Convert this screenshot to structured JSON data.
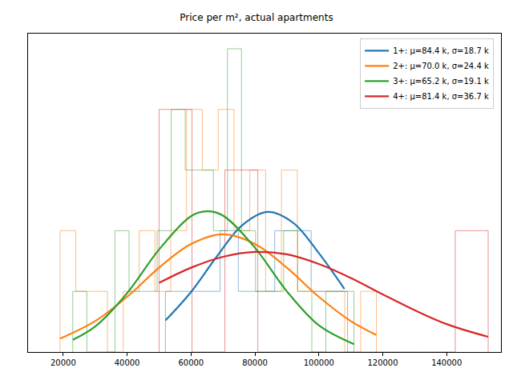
{
  "chart_data": {
    "type": "histogram",
    "title": "Price per m², actual apartments",
    "xlim": [
      9000,
      157000
    ],
    "xticks": [
      20000,
      40000,
      60000,
      80000,
      100000,
      120000,
      140000
    ],
    "ylim": [
      0,
      5.25
    ],
    "tick_labels": "x",
    "grid": false,
    "legend": "upper right",
    "series": [
      {
        "name": "1+: μ=84.4 k, σ=18.7 k",
        "color": "#1f77b4",
        "bins": [
          52000,
          57700,
          63400,
          69100,
          74800,
          80500,
          86200,
          91900,
          97600,
          103300,
          109000
        ],
        "counts": [
          1,
          1,
          1,
          2,
          1,
          1,
          2,
          2,
          1,
          1
        ],
        "curve_x": [
          52000,
          60000,
          68000,
          76000,
          84000,
          92000,
          100000,
          108000
        ],
        "curve_y": [
          0.52,
          0.99,
          1.57,
          2.09,
          2.31,
          2.13,
          1.63,
          1.04
        ]
      },
      {
        "name": "2+: μ=70.0 k, σ=24.4 k",
        "color": "#ff7f0e",
        "bins": [
          19000,
          23950,
          28900,
          33850,
          38800,
          43750,
          48700,
          53650,
          58600,
          63550,
          68500,
          73450,
          78400,
          83350,
          88300,
          93250,
          98200,
          103150,
          108100,
          113050,
          118000
        ],
        "counts": [
          2,
          1,
          1,
          0,
          1,
          2,
          1,
          2,
          4,
          3,
          4,
          2,
          3,
          1,
          3,
          1,
          1,
          1,
          0,
          1
        ],
        "curve_x": [
          19000,
          30000,
          40000,
          50000,
          60000,
          70000,
          80000,
          90000,
          100000,
          110000,
          118000
        ],
        "curve_y": [
          0.22,
          0.51,
          0.91,
          1.39,
          1.78,
          1.94,
          1.78,
          1.39,
          0.91,
          0.51,
          0.28
        ]
      },
      {
        "name": "3+: μ=65.2 k, σ=19.1 k",
        "color": "#2ca02c",
        "bins": [
          23000,
          27400,
          31800,
          36200,
          40600,
          45000,
          49400,
          53800,
          58200,
          62600,
          67000,
          71400,
          75800,
          80200,
          84600,
          89000,
          93400,
          97800,
          102200,
          106600,
          111000
        ],
        "counts": [
          1,
          0,
          0,
          2,
          1,
          1,
          2,
          4,
          3,
          3,
          2,
          5,
          2,
          1,
          1,
          2,
          1,
          0,
          1,
          1
        ],
        "curve_x": [
          23000,
          30000,
          40000,
          50000,
          60000,
          65000,
          70000,
          80000,
          90000,
          100000,
          111000
        ],
        "curve_y": [
          0.2,
          0.42,
          0.97,
          1.69,
          2.24,
          2.32,
          2.25,
          1.72,
          1.0,
          0.44,
          0.13
        ]
      },
      {
        "name": "4+: μ=81.4 k, σ=36.7 k",
        "color": "#d62728",
        "bins": [
          50000,
          60300,
          70600,
          80900,
          91200,
          101500,
          111800,
          122100,
          132400,
          142700,
          153000
        ],
        "counts": [
          4,
          0,
          3,
          0,
          0,
          0,
          0,
          0,
          0,
          2
        ],
        "curve_x": [
          50000,
          60000,
          70000,
          80000,
          90000,
          100000,
          110000,
          120000,
          130000,
          140000,
          153000
        ],
        "curve_y": [
          1.14,
          1.39,
          1.57,
          1.65,
          1.61,
          1.45,
          1.22,
          0.95,
          0.69,
          0.46,
          0.25
        ]
      }
    ]
  }
}
